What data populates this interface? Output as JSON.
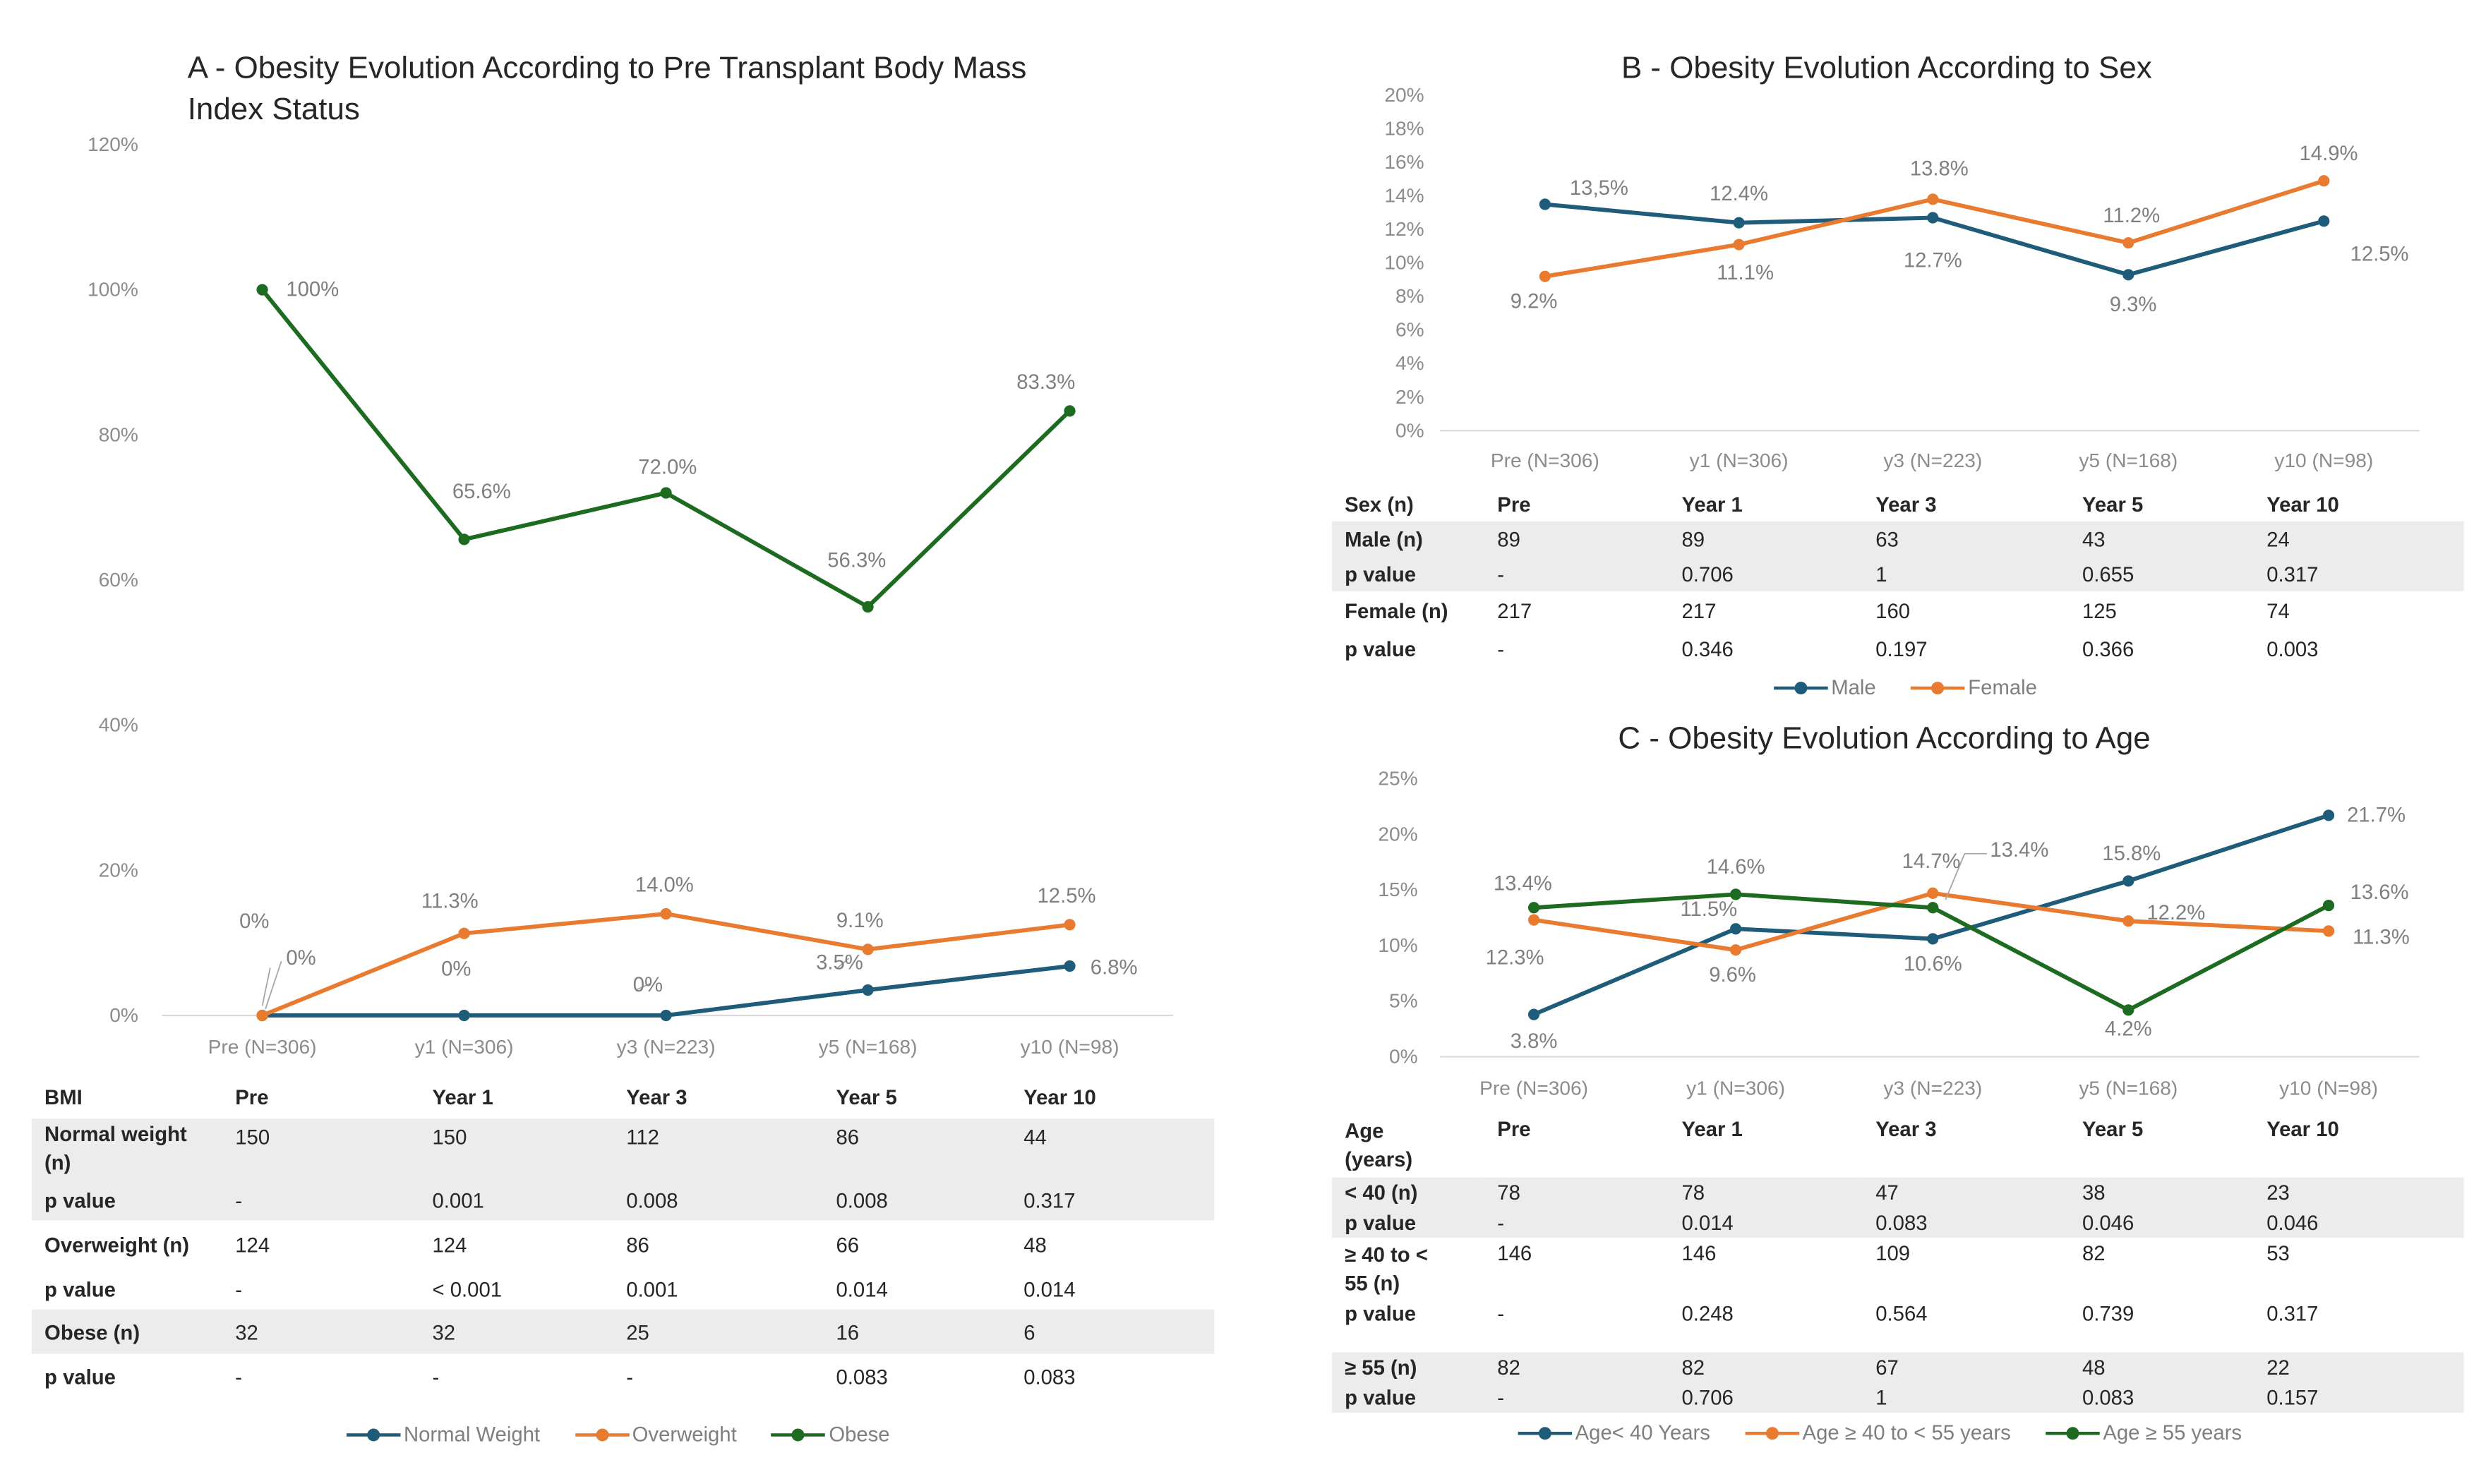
{
  "colors": {
    "blue": "#1f5c7a",
    "orange": "#e87b30",
    "green": "#1d6b20",
    "shade": "#ececec"
  },
  "panel_a": {
    "title_line1": "A - Obesity Evolution According to Pre Transplant Body Mass",
    "title_line2": "Index Status",
    "table": {
      "headers": [
        "BMI",
        "Pre",
        "Year 1",
        "Year 3",
        "Year 5",
        "Year 10"
      ],
      "rows": [
        {
          "label_line1": "Normal weight",
          "label_line2": "(n)",
          "values": [
            "150",
            "150",
            "112",
            "86",
            "44"
          ],
          "shade": true
        },
        {
          "label": "p value",
          "values": [
            "-",
            "0.001",
            "0.008",
            "0.008",
            "0.317"
          ],
          "shade": true
        },
        {
          "label": "Overweight (n)",
          "values": [
            "124",
            "124",
            "86",
            "66",
            "48"
          ],
          "shade": false
        },
        {
          "label": "p value",
          "values": [
            "-",
            "< 0.001",
            "0.001",
            "0.014",
            "0.014"
          ],
          "shade": false
        },
        {
          "label": "Obese (n)",
          "values": [
            "32",
            "32",
            "25",
            "16",
            "6"
          ],
          "shade": true
        },
        {
          "label": "p value",
          "values": [
            "-",
            "-",
            "-",
            "0.083",
            "0.083"
          ],
          "shade": false
        }
      ]
    },
    "legend": [
      "Normal Weight",
      "Overweight",
      "Obese"
    ]
  },
  "panel_b": {
    "title": "B - Obesity Evolution According to Sex",
    "table": {
      "headers": [
        "Sex (n)",
        "Pre",
        "Year 1",
        "Year 3",
        "Year 5",
        "Year 10"
      ],
      "rows": [
        {
          "label": "Male (n)",
          "values": [
            "89",
            "89",
            "63",
            "43",
            "24"
          ],
          "shade": true
        },
        {
          "label": "p value",
          "values": [
            "-",
            "0.706",
            "1",
            "0.655",
            "0.317"
          ],
          "shade": true
        },
        {
          "label": "Female (n)",
          "values": [
            "217",
            "217",
            "160",
            "125",
            "74"
          ],
          "shade": false
        },
        {
          "label": "p value",
          "values": [
            "-",
            "0.346",
            "0.197",
            "0.366",
            "0.003"
          ],
          "shade": false
        }
      ]
    },
    "legend": [
      "Male",
      "Female"
    ]
  },
  "panel_c": {
    "title": "C - Obesity Evolution According to Age",
    "table": {
      "headers_line1": [
        "Age",
        "Pre",
        "Year 1",
        "Year 3",
        "Year 5",
        "Year 10"
      ],
      "header_line2": "(years)",
      "rows": [
        {
          "label": "< 40 (n)",
          "values": [
            "78",
            "78",
            "47",
            "38",
            "23"
          ],
          "shade": true
        },
        {
          "label": "p value",
          "values": [
            "-",
            "0.014",
            "0.083",
            "0.046",
            "0.046"
          ],
          "shade": true
        },
        {
          "label_line1": "≥ 40 to <",
          "label_line2": "55 (n)",
          "values": [
            "146",
            "146",
            "109",
            "82",
            "53"
          ],
          "shade": false
        },
        {
          "label": "p value",
          "values": [
            "-",
            "0.248",
            "0.564",
            "0.739",
            "0.317"
          ],
          "shade": false
        },
        {
          "label": "≥ 55 (n)",
          "values": [
            "82",
            "82",
            "67",
            "48",
            "22"
          ],
          "shade": true
        },
        {
          "label": "p value",
          "values": [
            "-",
            "0.706",
            "1",
            "0.083",
            "0.157"
          ],
          "shade": true
        }
      ]
    },
    "legend": [
      "Age< 40 Years",
      "Age ≥ 40 to < 55 years",
      "Age ≥ 55 years"
    ]
  },
  "chart_data": [
    {
      "type": "line",
      "title": "A - Obesity Evolution According to Pre Transplant Body Mass Index Status",
      "categories": [
        "Pre (N=306)",
        "y1 (N=306)",
        "y3 (N=223)",
        "y5 (N=168)",
        "y10 (N=98)"
      ],
      "ylim": [
        0,
        120
      ],
      "yticks": [
        "0%",
        "20%",
        "40%",
        "60%",
        "80%",
        "100%",
        "120%"
      ],
      "series": [
        {
          "name": "Normal Weight",
          "color": "#1f5c7a",
          "values": [
            0,
            0,
            0,
            3.5,
            6.8
          ],
          "labels": [
            "0%",
            "0%",
            "0%",
            "3.5%",
            "6.8%"
          ]
        },
        {
          "name": "Overweight",
          "color": "#e87b30",
          "values": [
            0,
            11.3,
            14.0,
            9.1,
            12.5
          ],
          "labels": [
            "0%",
            "11.3%",
            "14.0%",
            "9.1%",
            "12.5%"
          ]
        },
        {
          "name": "Obese",
          "color": "#1d6b20",
          "values": [
            100,
            65.6,
            72.0,
            56.3,
            83.3
          ],
          "labels": [
            "100%",
            "65.6%",
            "72.0%",
            "56.3%",
            "83.3%"
          ]
        }
      ]
    },
    {
      "type": "line",
      "title": "B - Obesity Evolution According to Sex",
      "categories": [
        "Pre (N=306)",
        "y1 (N=306)",
        "y3 (N=223)",
        "y5 (N=168)",
        "y10 (N=98)"
      ],
      "ylim": [
        0,
        20
      ],
      "yticks": [
        "0%",
        "2%",
        "4%",
        "6%",
        "8%",
        "10%",
        "12%",
        "14%",
        "16%",
        "18%",
        "20%"
      ],
      "series": [
        {
          "name": "Male",
          "color": "#1f5c7a",
          "values": [
            13.5,
            12.4,
            12.7,
            9.3,
            12.5
          ],
          "labels": [
            "13,5%",
            "12.4%",
            "12.7%",
            "9.3%",
            "12.5%"
          ]
        },
        {
          "name": "Female",
          "color": "#e87b30",
          "values": [
            9.2,
            11.1,
            13.8,
            11.2,
            14.9
          ],
          "labels": [
            "9.2%",
            "11.1%",
            "13.8%",
            "11.2%",
            "14.9%"
          ]
        }
      ]
    },
    {
      "type": "line",
      "title": "C - Obesity Evolution According to Age",
      "categories": [
        "Pre (N=306)",
        "y1 (N=306)",
        "y3 (N=223)",
        "y5 (N=168)",
        "y10 (N=98)"
      ],
      "ylim": [
        0,
        25
      ],
      "yticks": [
        "0%",
        "5%",
        "10%",
        "15%",
        "20%",
        "25%"
      ],
      "series": [
        {
          "name": "Age< 40 Years",
          "color": "#1f5c7a",
          "values": [
            3.8,
            11.5,
            10.6,
            15.8,
            21.7
          ],
          "labels": [
            "3.8%",
            "11.5%",
            "10.6%",
            "15.8%",
            "21.7%"
          ]
        },
        {
          "name": "Age ≥ 40 to < 55 years",
          "color": "#e87b30",
          "values": [
            12.3,
            9.6,
            14.7,
            12.2,
            11.3
          ],
          "labels": [
            "12.3%",
            "9.6%",
            "14.7%",
            "12.2%",
            "11.3%"
          ]
        },
        {
          "name": "Age ≥ 55 years",
          "color": "#1d6b20",
          "values": [
            13.4,
            14.6,
            13.4,
            4.2,
            13.6
          ],
          "labels": [
            "13.4%",
            "14.6%",
            "13.4%",
            "4.2%",
            "13.6%"
          ]
        }
      ]
    }
  ]
}
